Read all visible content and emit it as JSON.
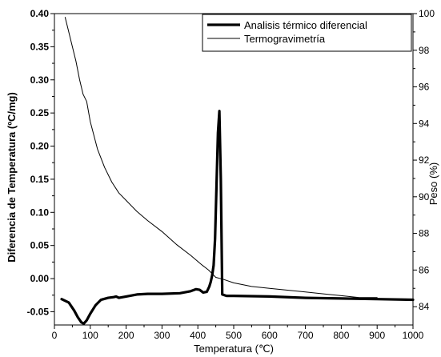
{
  "chart_data": {
    "type": "line",
    "xlabel": "Temperatura (℃)",
    "ylabel_left": "Diferencia de Temperatura (ºC/mg)",
    "ylabel_right": "Peso (%)",
    "xlim": [
      0,
      1000
    ],
    "ylim_left": [
      -0.07,
      0.4
    ],
    "ylim_right": [
      83,
      100
    ],
    "x_ticks": [
      "0",
      "100",
      "200",
      "300",
      "400",
      "500",
      "600",
      "700",
      "800",
      "900",
      "1000"
    ],
    "y_left_ticks": [
      "-0.05",
      "0.00",
      "0.05",
      "0.10",
      "0.15",
      "0.20",
      "0.25",
      "0.30",
      "0.35",
      "0.40"
    ],
    "y_right_ticks": [
      "84",
      "86",
      "88",
      "90",
      "92",
      "94",
      "96",
      "98",
      "100"
    ],
    "grid": false,
    "legend_position": "top-right",
    "series": [
      {
        "name": "Analisis térmico diferencial",
        "axis": "left",
        "style": "thick",
        "x": [
          20,
          40,
          55,
          65,
          75,
          82,
          90,
          100,
          115,
          130,
          150,
          165,
          172,
          180,
          200,
          230,
          260,
          300,
          350,
          380,
          395,
          405,
          415,
          425,
          432,
          436,
          440,
          444,
          448,
          452,
          456,
          460,
          464,
          468,
          480,
          500,
          600,
          700,
          800,
          900,
          1000
        ],
        "y": [
          -0.031,
          -0.036,
          -0.048,
          -0.058,
          -0.066,
          -0.068,
          -0.063,
          -0.053,
          -0.04,
          -0.032,
          -0.029,
          -0.028,
          -0.027,
          -0.029,
          -0.027,
          -0.024,
          -0.023,
          -0.023,
          -0.022,
          -0.019,
          -0.016,
          -0.017,
          -0.021,
          -0.02,
          -0.012,
          -0.005,
          0.005,
          0.02,
          0.06,
          0.14,
          0.22,
          0.253,
          0.15,
          -0.024,
          -0.026,
          -0.026,
          -0.027,
          -0.029,
          -0.03,
          -0.031,
          -0.032
        ]
      },
      {
        "name": "Termogravimetría",
        "axis": "right",
        "style": "thin",
        "x": [
          30,
          40,
          50,
          60,
          70,
          80,
          90,
          100,
          120,
          140,
          160,
          180,
          200,
          230,
          260,
          300,
          340,
          380,
          410,
          430,
          440,
          450,
          470,
          500,
          550,
          600,
          650,
          700,
          750,
          800,
          850,
          900
        ],
        "y": [
          99.8,
          99.0,
          98.2,
          97.4,
          96.4,
          95.6,
          95.2,
          94.1,
          92.6,
          91.6,
          90.8,
          90.2,
          89.8,
          89.2,
          88.7,
          88.1,
          87.4,
          86.8,
          86.3,
          86.0,
          85.8,
          85.6,
          85.5,
          85.3,
          85.1,
          85.0,
          84.9,
          84.8,
          84.7,
          84.6,
          84.5,
          84.5
        ]
      }
    ]
  }
}
